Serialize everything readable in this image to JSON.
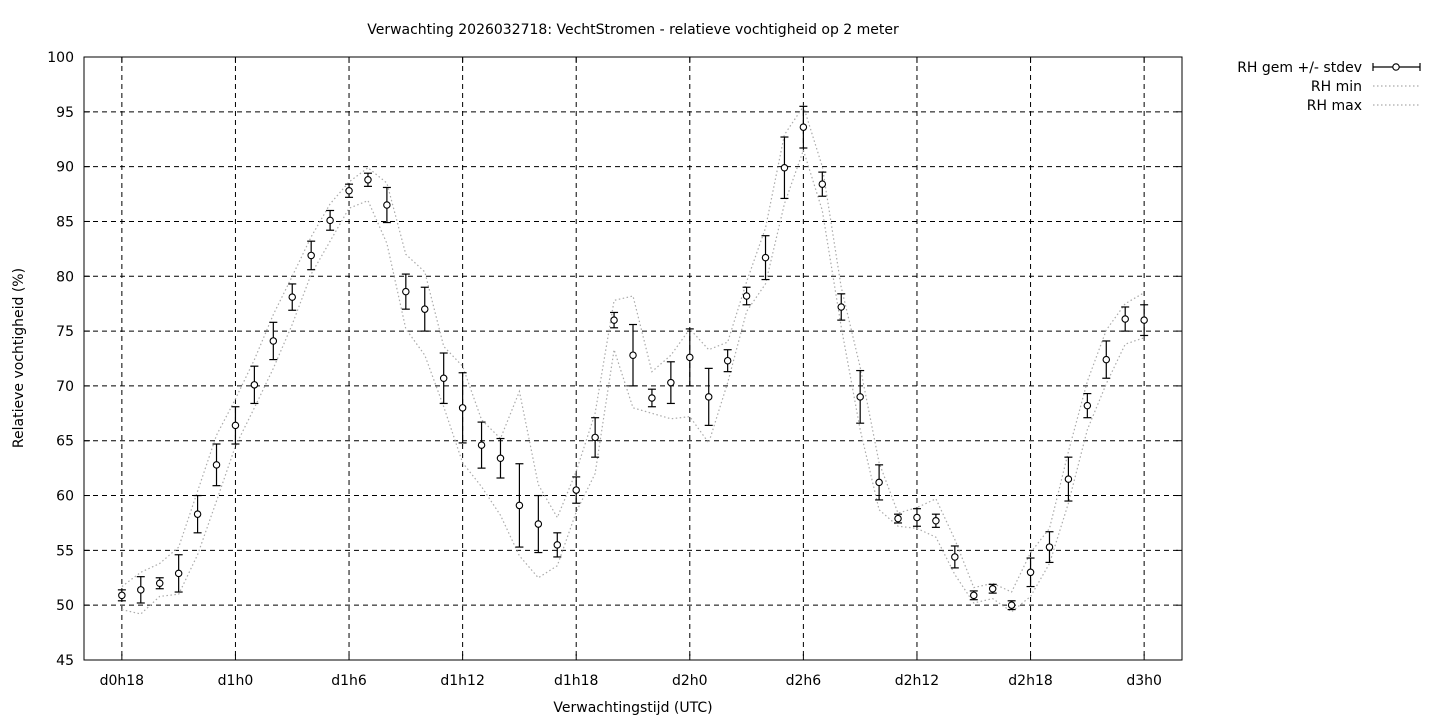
{
  "chart_data": {
    "type": "line",
    "title": "Verwachting 2026032718: VechtStromen - relatieve vochtigheid op 2 meter",
    "xlabel": "Verwachtingstijd (UTC)",
    "ylabel": "Relatieve vochtigheid (%)",
    "xlim": [
      -2,
      56
    ],
    "ylim": [
      45,
      100
    ],
    "yticks": [
      45,
      50,
      55,
      60,
      65,
      70,
      75,
      80,
      85,
      90,
      95,
      100
    ],
    "xticks": [
      {
        "x": 0,
        "label": "d0h18"
      },
      {
        "x": 6,
        "label": "d1h0"
      },
      {
        "x": 12,
        "label": "d1h6"
      },
      {
        "x": 18,
        "label": "d1h12"
      },
      {
        "x": 24,
        "label": "d1h18"
      },
      {
        "x": 30,
        "label": "d2h0"
      },
      {
        "x": 36,
        "label": "d2h6"
      },
      {
        "x": 42,
        "label": "d2h12"
      },
      {
        "x": 48,
        "label": "d2h18"
      },
      {
        "x": 54,
        "label": "d3h0"
      }
    ],
    "grid": true,
    "legend_position": "outside-top-right",
    "x_unit": "hours since d0h18",
    "series": [
      {
        "name": "RH gem +/- stdev",
        "style": "errorbars",
        "x": [
          0,
          1,
          2,
          3,
          4,
          5,
          6,
          7,
          8,
          9,
          10,
          11,
          12,
          13,
          14,
          15,
          16,
          17,
          18,
          19,
          20,
          21,
          22,
          23,
          24,
          25,
          26,
          27,
          28,
          29,
          30,
          31,
          32,
          33,
          34,
          35,
          36,
          37,
          38,
          39,
          40,
          41,
          42,
          43,
          44,
          45,
          46,
          47,
          48,
          49,
          50,
          51,
          52,
          53,
          54
        ],
        "values": [
          50.9,
          51.4,
          52.0,
          52.9,
          58.3,
          62.8,
          66.4,
          70.1,
          74.1,
          78.1,
          81.9,
          85.1,
          87.8,
          88.8,
          86.5,
          78.6,
          77.0,
          70.7,
          68.0,
          64.6,
          63.4,
          59.1,
          57.4,
          55.5,
          60.5,
          65.3,
          76.0,
          72.8,
          68.9,
          70.3,
          72.6,
          69.0,
          72.3,
          78.2,
          81.7,
          89.9,
          93.6,
          88.4,
          77.2,
          69.0,
          61.2,
          57.9,
          58.0,
          57.7,
          54.4,
          50.9,
          51.5,
          50.0,
          53.0,
          55.3,
          61.5,
          68.2,
          72.4,
          76.1,
          76.0
        ],
        "stdev": [
          0.5,
          1.2,
          0.5,
          1.7,
          1.7,
          1.9,
          1.7,
          1.7,
          1.7,
          1.2,
          1.3,
          0.9,
          0.6,
          0.6,
          1.6,
          1.6,
          2.0,
          2.3,
          3.2,
          2.1,
          1.8,
          3.8,
          2.6,
          1.1,
          1.2,
          1.8,
          0.7,
          2.8,
          0.8,
          1.9,
          2.6,
          2.6,
          1.0,
          0.8,
          2.0,
          2.8,
          1.9,
          1.1,
          1.2,
          2.4,
          1.6,
          0.4,
          0.8,
          0.6,
          1.0,
          0.4,
          0.4,
          0.4,
          1.3,
          1.4,
          2.0,
          1.1,
          1.7,
          1.1,
          1.4
        ],
        "color": "#000000"
      },
      {
        "name": "RH min",
        "style": "dotted",
        "x": [
          0,
          1,
          2,
          3,
          4,
          5,
          6,
          7,
          8,
          9,
          10,
          11,
          12,
          13,
          14,
          15,
          16,
          17,
          18,
          19,
          20,
          21,
          22,
          23,
          24,
          25,
          26,
          27,
          28,
          29,
          30,
          31,
          32,
          33,
          34,
          35,
          36,
          37,
          38,
          39,
          40,
          41,
          42,
          43,
          44,
          45,
          46,
          47,
          48,
          49,
          50,
          51,
          52,
          53,
          54
        ],
        "values": [
          49.6,
          49.2,
          50.8,
          51.0,
          54.6,
          59.5,
          64.5,
          68.0,
          71.6,
          75.6,
          80.2,
          83.2,
          86.2,
          86.9,
          83.0,
          75.2,
          72.8,
          68.1,
          63.0,
          60.8,
          58.2,
          54.5,
          52.5,
          53.6,
          58.5,
          62.0,
          73.3,
          68.0,
          67.5,
          67.0,
          67.2,
          64.8,
          70.3,
          76.8,
          79.3,
          86.6,
          91.5,
          86.0,
          75.4,
          66.0,
          58.7,
          57.2,
          57.0,
          56.2,
          52.8,
          50.2,
          50.6,
          49.4,
          50.8,
          53.8,
          59.3,
          66.0,
          70.2,
          73.8,
          74.4
        ],
        "color": "#aaaaaa"
      },
      {
        "name": "RH max",
        "style": "dotted",
        "x": [
          0,
          1,
          2,
          3,
          4,
          5,
          6,
          7,
          8,
          9,
          10,
          11,
          12,
          13,
          14,
          15,
          16,
          17,
          18,
          19,
          20,
          21,
          22,
          23,
          24,
          25,
          26,
          27,
          28,
          29,
          30,
          31,
          32,
          33,
          34,
          35,
          36,
          37,
          38,
          39,
          40,
          41,
          42,
          43,
          44,
          45,
          46,
          47,
          48,
          49,
          50,
          51,
          52,
          53,
          54
        ],
        "values": [
          51.7,
          53.0,
          53.8,
          55.3,
          60.4,
          65.5,
          68.8,
          72.4,
          76.5,
          80.0,
          83.6,
          86.6,
          88.6,
          89.9,
          88.5,
          82.0,
          80.4,
          73.6,
          71.8,
          66.9,
          65.2,
          69.5,
          61.0,
          58.0,
          62.2,
          67.5,
          77.8,
          78.2,
          71.3,
          72.8,
          75.2,
          73.3,
          74.0,
          79.5,
          84.4,
          92.9,
          95.5,
          90.0,
          79.0,
          71.7,
          63.0,
          58.4,
          58.9,
          59.7,
          56.0,
          51.6,
          52.0,
          51.2,
          54.8,
          57.0,
          64.0,
          70.4,
          75.1,
          77.5,
          78.5
        ],
        "color": "#aaaaaa"
      }
    ]
  }
}
